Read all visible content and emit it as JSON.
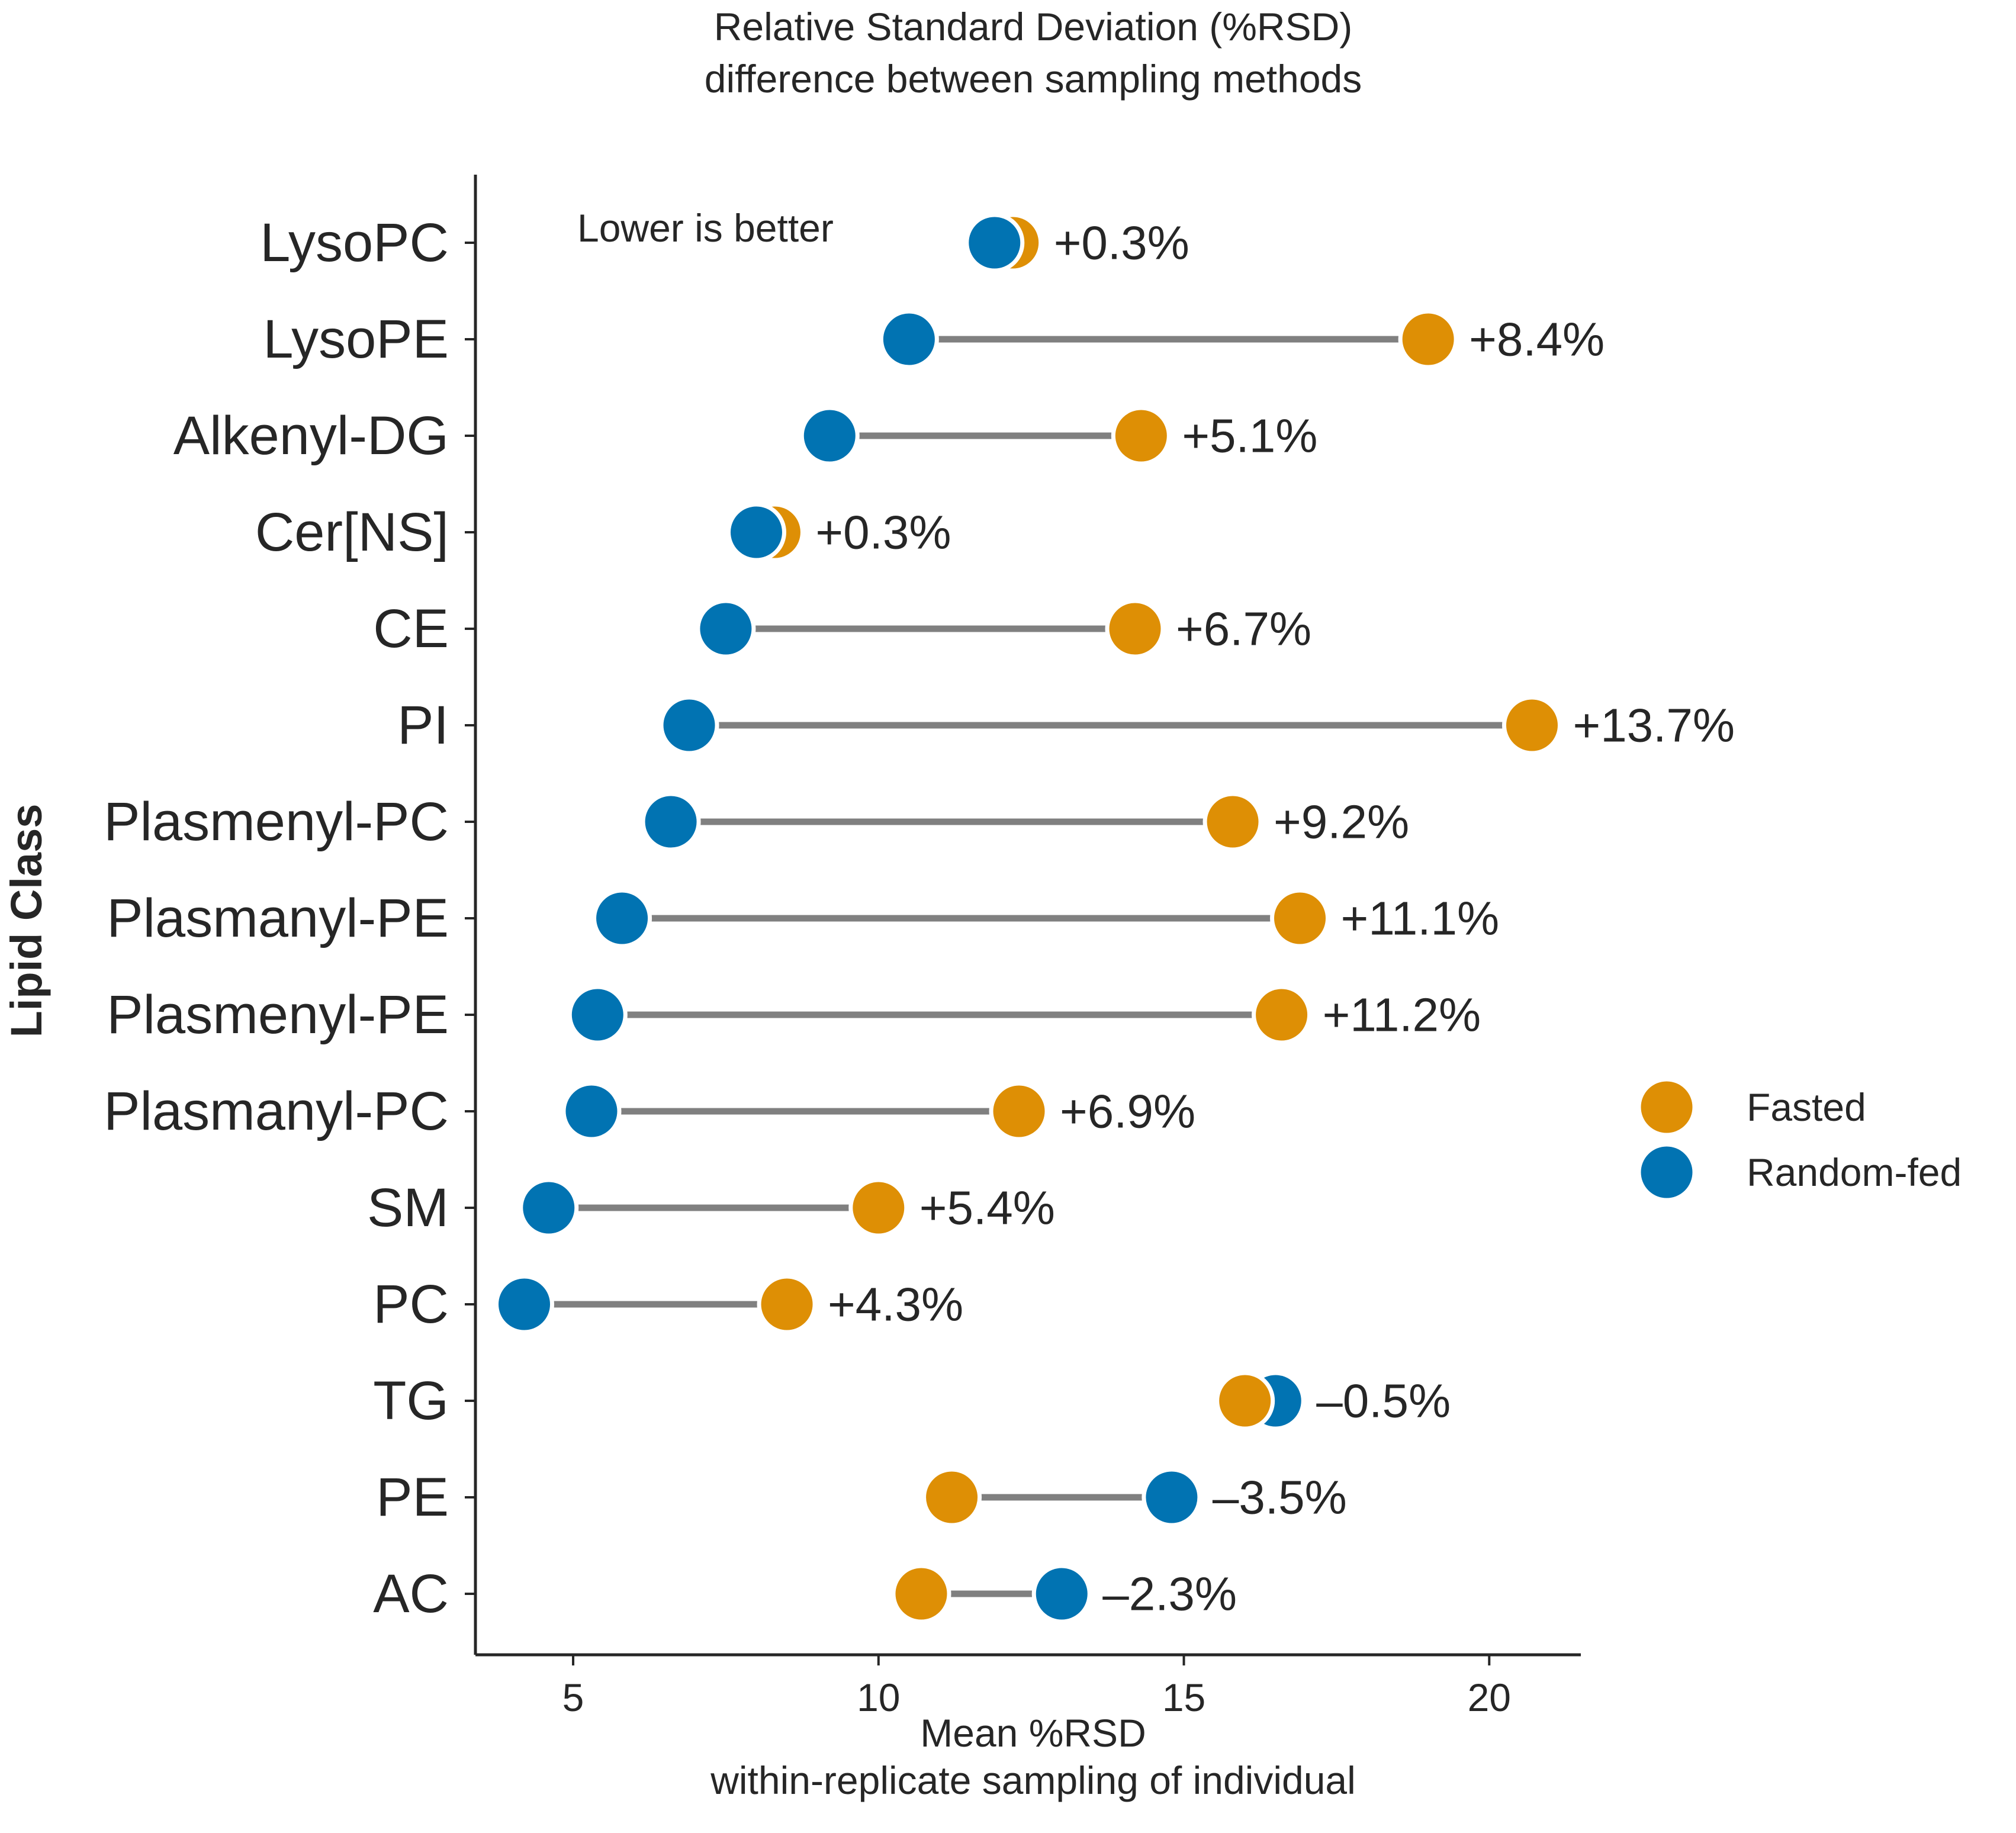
{
  "chart_data": {
    "type": "scatter",
    "title_line1": "Relative Standard Deviation (%RSD)",
    "title_line2": "difference between sampling methods",
    "xlabel_line1": "Mean %RSD",
    "xlabel_line2": "within-replicate sampling of individual",
    "ylabel": "Lipid Class",
    "annotation": "Lower is better",
    "xlim": [
      3.4,
      21.5
    ],
    "xticks": [
      5,
      10,
      15,
      20
    ],
    "legend_position": "center-right",
    "categories": [
      "LysoPC",
      "LysoPE",
      "Alkenyl-DG",
      "Cer[NS]",
      "CE",
      "PI",
      "Plasmenyl-PC",
      "Plasmanyl-PE",
      "Plasmenyl-PE",
      "Plasmanyl-PC",
      "SM",
      "PC",
      "TG",
      "PE",
      "AC"
    ],
    "series": [
      {
        "name": "Fasted",
        "color": "#de8f05",
        "values": [
          12.2,
          19.0,
          14.3,
          8.3,
          14.2,
          20.7,
          15.8,
          16.9,
          16.6,
          12.3,
          10.0,
          8.5,
          16.0,
          11.2,
          10.7
        ]
      },
      {
        "name": "Random-fed",
        "color": "#0173b2",
        "values": [
          11.9,
          10.5,
          9.2,
          8.0,
          7.5,
          6.9,
          6.6,
          5.8,
          5.4,
          5.3,
          4.6,
          4.2,
          16.5,
          14.8,
          13.0
        ]
      }
    ],
    "differences": [
      "+0.3%",
      "+8.4%",
      "+5.1%",
      "+0.3%",
      "+6.7%",
      "+13.7%",
      "+9.2%",
      "+11.1%",
      "+11.2%",
      "+6.9%",
      "+5.4%",
      "+4.3%",
      "–0.5%",
      "–3.5%",
      "–2.3%"
    ]
  }
}
